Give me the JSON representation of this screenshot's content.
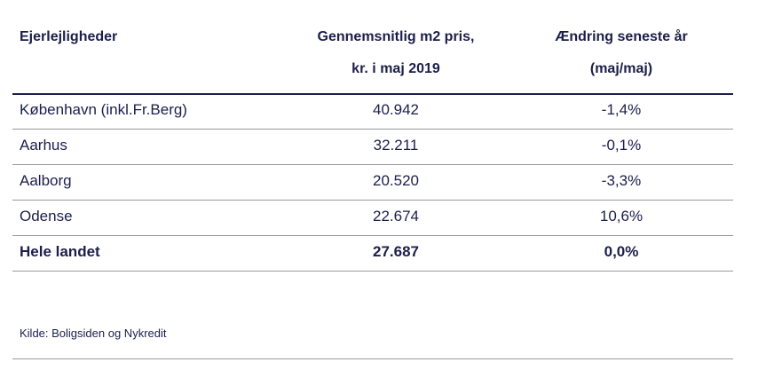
{
  "header": {
    "col1": "Ejerlejligheder",
    "col2_line1": "Gennemsnitlig m2 pris,",
    "col2_line2": "kr. i maj 2019",
    "col3_line1": "Ændring seneste år",
    "col3_line2": "(maj/maj)"
  },
  "rows": [
    {
      "city": "København (inkl.Fr.Berg)",
      "price": "40.942",
      "change": "-1,4%"
    },
    {
      "city": "Aarhus",
      "price": "32.211",
      "change": "-0,1%"
    },
    {
      "city": "Aalborg",
      "price": "20.520",
      "change": "-3,3%"
    },
    {
      "city": "Odense",
      "price": "22.674",
      "change": "10,6%"
    },
    {
      "city": "Hele landet",
      "price": "27.687",
      "change": "0,0%"
    }
  ],
  "source": "Kilde: Boligsiden og Nykredit"
}
